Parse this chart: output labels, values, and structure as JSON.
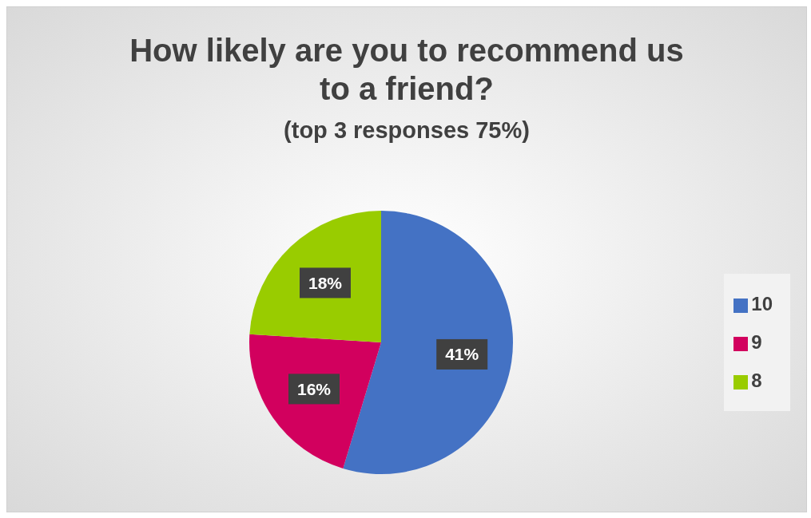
{
  "chart_data": {
    "type": "pie",
    "title": "How likely are you to recommend us to a friend?",
    "subtitle": "(top 3 responses 75%)",
    "categories": [
      "10",
      "9",
      "8"
    ],
    "values": [
      41,
      16,
      18
    ],
    "colors": [
      "#4472c4",
      "#d2005e",
      "#99cc00"
    ],
    "value_labels": [
      "41%",
      "16%",
      "18%"
    ],
    "legend": "right"
  }
}
